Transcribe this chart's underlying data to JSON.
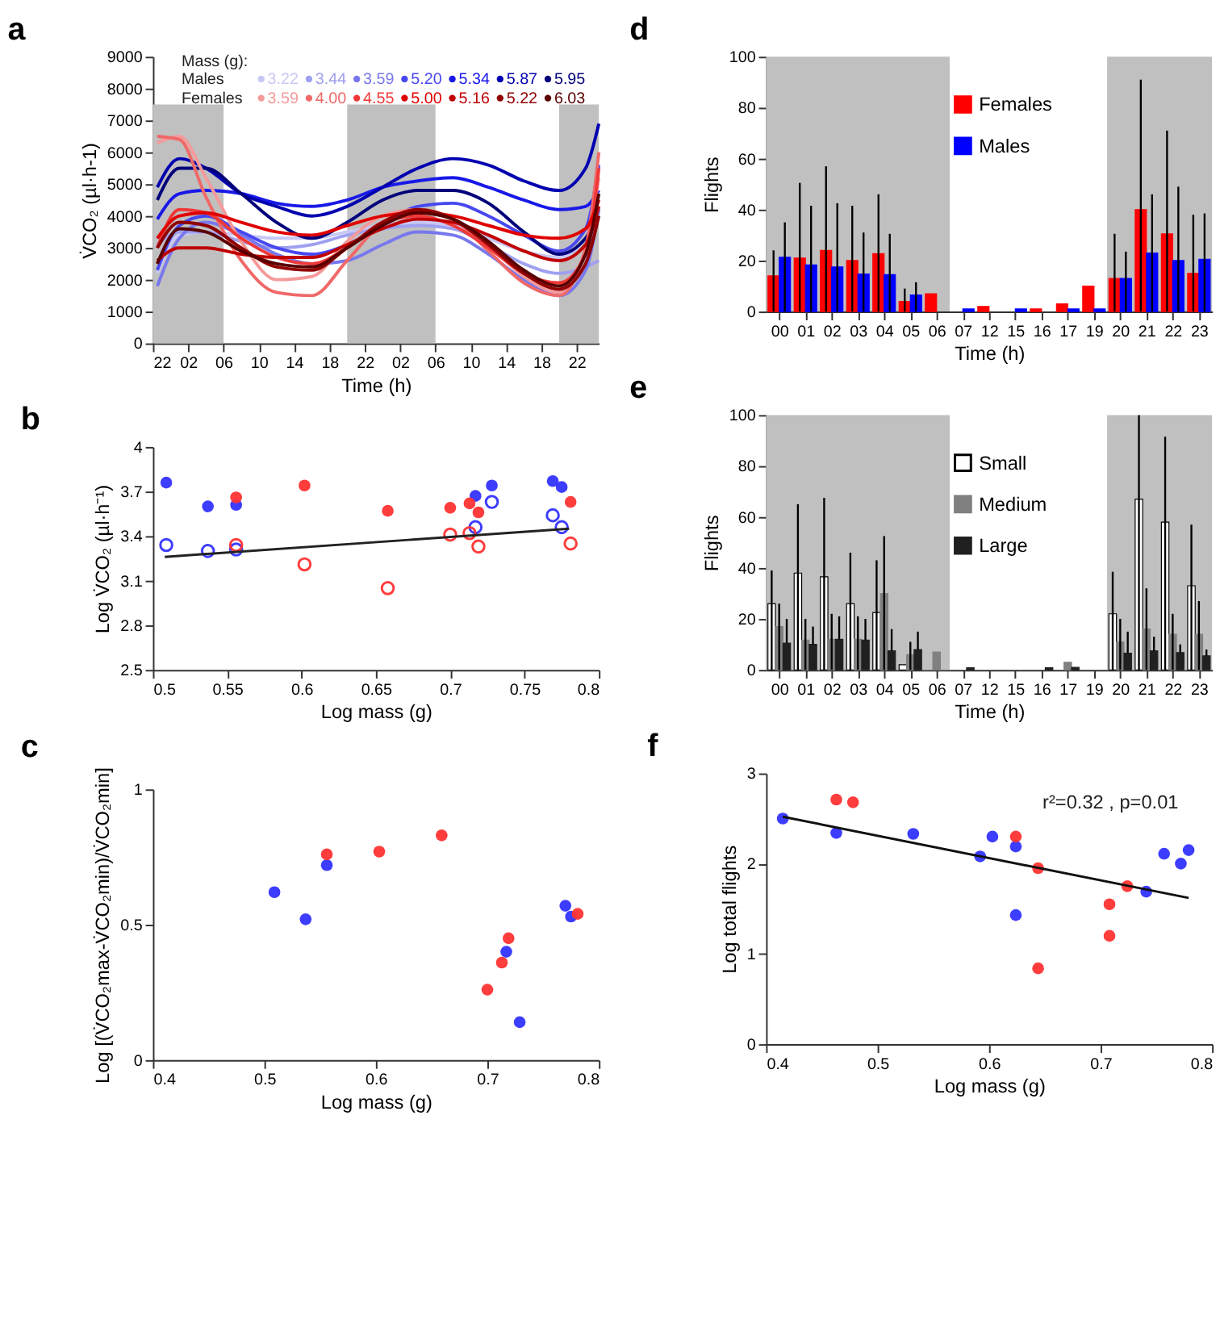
{
  "chart_data": [
    {
      "type": "line",
      "title": "a",
      "xlabel": "Time (h)",
      "ylabel": "V̇CO₂ (µl·h-1)",
      "legend_title": "Mass (g):",
      "legend": "top",
      "grid": false,
      "line_style": "solid",
      "marker": "none",
      "annotations": [
        "Males",
        "Females"
      ],
      "x": [
        "2000-01-01T22:30",
        "2000-01-02T01:00",
        "2000-01-02T04:00",
        "2000-01-02T08:00",
        "2000-01-02T12:00",
        "2000-01-02T16:00",
        "2000-01-02T20:00",
        "2000-01-03T00:00",
        "2000-01-03T04:00",
        "2000-01-03T08:00",
        "2000-01-03T12:00",
        "2000-01-03T16:00",
        "2000-01-03T20:00",
        "2000-01-03T23:00",
        "2000-01-04T00:30"
      ],
      "xlim": [
        "2000-01-01T22:00",
        "2000-01-04T00:30"
      ],
      "xticks": [
        {
          "value": "2000-01-01T22:00",
          "label": "22"
        },
        {
          "value": "2000-01-02T02:00",
          "label": "02"
        },
        {
          "value": "2000-01-02T06:00",
          "label": "06"
        },
        {
          "value": "2000-01-02T10:00",
          "label": "10"
        },
        {
          "value": "2000-01-02T14:00",
          "label": "14"
        },
        {
          "value": "2000-01-02T18:00",
          "label": "18"
        },
        {
          "value": "2000-01-02T22:00",
          "label": "22"
        },
        {
          "value": "2000-01-03T02:00",
          "label": "02"
        },
        {
          "value": "2000-01-03T06:00",
          "label": "06"
        },
        {
          "value": "2000-01-03T10:00",
          "label": "10"
        },
        {
          "value": "2000-01-03T14:00",
          "label": "14"
        },
        {
          "value": "2000-01-03T18:00",
          "label": "18"
        },
        {
          "value": "2000-01-03T22:00",
          "label": "22"
        }
      ],
      "ylim": [
        0,
        9000
      ],
      "yticks": [
        0,
        1000,
        2000,
        3000,
        4000,
        5000,
        6000,
        7000,
        8000,
        9000
      ],
      "bands": [
        {
          "axis": "x",
          "from": "2000-01-01T22:00",
          "to": "2000-01-02T06:00",
          "color": "#c0c0c0"
        },
        {
          "axis": "x",
          "from": "2000-01-02T20:00",
          "to": "2000-01-03T06:00",
          "color": "#c0c0c0"
        },
        {
          "axis": "x",
          "from": "2000-01-03T20:00",
          "to": "2000-01-04T00:30",
          "color": "#c0c0c0"
        }
      ],
      "series": [
        {
          "name": "3.22",
          "color": "#c8c8f5",
          "values": [
            2200,
            3400,
            3500,
            3400,
            3300,
            3300,
            3500,
            3700,
            3800,
            3700,
            3300,
            2900,
            2700,
            3300,
            4000
          ]
        },
        {
          "name": "3.44",
          "color": "#a0a0f0",
          "values": [
            3100,
            3500,
            3500,
            3200,
            3000,
            3100,
            3400,
            3600,
            3700,
            3600,
            3100,
            2500,
            2200,
            2400,
            2600
          ]
        },
        {
          "name": "3.59",
          "color": "#7878ee",
          "values": [
            1800,
            3300,
            3800,
            3400,
            2800,
            2500,
            2600,
            3100,
            3500,
            3400,
            2800,
            2000,
            1500,
            2300,
            4200
          ]
        },
        {
          "name": "5.20",
          "color": "#4848f0",
          "values": [
            2300,
            3700,
            4000,
            3500,
            3000,
            2800,
            3100,
            3700,
            4300,
            4400,
            4000,
            3400,
            2900,
            3600,
            5600
          ]
        },
        {
          "name": "5.34",
          "color": "#1818e8",
          "values": [
            3900,
            4700,
            4800,
            4700,
            4400,
            4300,
            4500,
            4900,
            5100,
            5200,
            4900,
            4500,
            4200,
            4300,
            4800
          ]
        },
        {
          "name": "5.87",
          "color": "#0000b0",
          "values": [
            4900,
            5800,
            5500,
            4700,
            4300,
            4000,
            4300,
            4900,
            5500,
            5800,
            5600,
            5100,
            4800,
            5500,
            6900
          ]
        },
        {
          "name": "5.95",
          "color": "#00007a",
          "values": [
            4500,
            5500,
            5500,
            4700,
            3800,
            3300,
            3800,
            4500,
            4800,
            4800,
            4400,
            3500,
            2800,
            3300,
            4300
          ]
        },
        {
          "name": "3.59",
          "color": "#f59a9a",
          "values": [
            6300,
            6500,
            5200,
            3200,
            2000,
            2100,
            3200,
            4000,
            4200,
            3900,
            3100,
            2100,
            1600,
            2900,
            5200
          ]
        },
        {
          "name": "4.00",
          "color": "#f06868",
          "values": [
            6500,
            6400,
            4600,
            2600,
            1600,
            1500,
            2600,
            3800,
            4200,
            3900,
            2900,
            1900,
            1500,
            3000,
            6000
          ]
        },
        {
          "name": "4.55",
          "color": "#f03838",
          "values": [
            3000,
            4200,
            4100,
            3300,
            2700,
            2500,
            3000,
            3800,
            4000,
            3700,
            3000,
            2200,
            1900,
            2800,
            5500
          ]
        },
        {
          "name": "5.00",
          "color": "#e00000",
          "values": [
            3300,
            4000,
            4100,
            3800,
            3500,
            3400,
            3700,
            4000,
            4100,
            4000,
            3700,
            3400,
            3300,
            3600,
            4500
          ]
        },
        {
          "name": "5.16",
          "color": "#c00000",
          "values": [
            2600,
            3000,
            3000,
            2800,
            2700,
            2700,
            3100,
            3600,
            3900,
            3800,
            3400,
            2900,
            2600,
            3100,
            4300
          ]
        },
        {
          "name": "5.22",
          "color": "#900000",
          "values": [
            3000,
            3800,
            3700,
            3000,
            2400,
            2300,
            3000,
            3800,
            4200,
            3900,
            3100,
            2200,
            1700,
            2500,
            4000
          ]
        },
        {
          "name": "6.03",
          "color": "#5a0000",
          "values": [
            2500,
            3600,
            3500,
            2900,
            2500,
            2400,
            3000,
            3700,
            4100,
            3900,
            3200,
            2300,
            1800,
            2800,
            4700
          ]
        }
      ]
    },
    {
      "type": "scatter",
      "title": "b",
      "xlabel": "Log mass (g)",
      "ylabel": "Log V̇CO₂ (µl·h⁻¹)",
      "grid": false,
      "xlim": [
        0.5,
        0.8
      ],
      "xticks": [
        0.5,
        0.55,
        0.6,
        0.65,
        0.7,
        0.75,
        0.8
      ],
      "ylim": [
        2.5,
        4
      ],
      "yticks": [
        2.5,
        2.8,
        3.1,
        3.4,
        3.7,
        4
      ],
      "series": [
        {
          "color": "#3333ff",
          "marker": "circle",
          "x": [
            0.509,
            0.537,
            0.556,
            0.717,
            0.728,
            0.769,
            0.775
          ],
          "values": [
            3.76,
            3.6,
            3.61,
            3.67,
            3.74,
            3.77,
            3.73
          ]
        },
        {
          "color": "#ff3333",
          "marker": "circle",
          "x": [
            0.556,
            0.602,
            0.658,
            0.7,
            0.713,
            0.719,
            0.781
          ],
          "values": [
            3.66,
            3.74,
            3.57,
            3.59,
            3.62,
            3.56,
            3.63
          ]
        },
        {
          "color": "#3333ff",
          "marker": "circle_open",
          "x": [
            0.509,
            0.537,
            0.556,
            0.717,
            0.728,
            0.769,
            0.775
          ],
          "values": [
            3.34,
            3.3,
            3.31,
            3.46,
            3.63,
            3.54,
            3.46
          ]
        },
        {
          "color": "#ff3333",
          "marker": "circle_open",
          "x": [
            0.556,
            0.602,
            0.658,
            0.7,
            0.713,
            0.719,
            0.781
          ],
          "values": [
            3.34,
            3.21,
            3.05,
            3.41,
            3.42,
            3.33,
            3.35
          ]
        },
        {
          "type": "line",
          "color": "#222222",
          "x": [
            0.508,
            0.78
          ],
          "values": [
            3.26,
            3.45
          ]
        }
      ]
    },
    {
      "type": "scatter",
      "title": "c",
      "xlabel": "Log mass (g)",
      "ylabel": "Log [(V̇CO₂max-V̇CO₂min)/V̇CO₂min]",
      "grid": false,
      "xlim": [
        0.4,
        0.8
      ],
      "xticks": [
        0.4,
        0.5,
        0.6,
        0.7,
        0.8
      ],
      "ylim": [
        0,
        1
      ],
      "yticks": [
        0,
        0.5,
        1
      ],
      "series": [
        {
          "color": "#3333ff",
          "marker": "circle",
          "x": [
            0.509,
            0.537,
            0.556,
            0.717,
            0.729,
            0.77,
            0.775
          ],
          "values": [
            0.62,
            0.52,
            0.72,
            0.4,
            0.14,
            0.57,
            0.53
          ]
        },
        {
          "color": "#ff3333",
          "marker": "circle",
          "x": [
            0.556,
            0.603,
            0.659,
            0.7,
            0.713,
            0.719,
            0.781
          ],
          "values": [
            0.76,
            0.77,
            0.83,
            0.26,
            0.36,
            0.45,
            0.54
          ]
        }
      ]
    },
    {
      "type": "bar",
      "title": "d",
      "xlabel": "Time (h)",
      "ylabel": "Flights",
      "grid": false,
      "legend": "top",
      "categories": [
        "00",
        "01",
        "02",
        "03",
        "04",
        "05",
        "06",
        "07",
        "12",
        "15",
        "16",
        "17",
        "19",
        "20",
        "21",
        "22",
        "23"
      ],
      "ylim": [
        0,
        100
      ],
      "yticks": [
        0,
        20,
        40,
        60,
        80,
        100
      ],
      "bands": [
        {
          "axis": "x",
          "from": "00",
          "to": "06",
          "color": "#c0c0c0"
        },
        {
          "axis": "x",
          "from": "20",
          "to": "23",
          "color": "#c0c0c0"
        }
      ],
      "series": [
        {
          "name": "Females",
          "color": "#ff0000",
          "values": [
            14,
            21,
            24,
            20,
            22.7,
            4,
            7,
            0,
            2,
            0,
            1,
            3,
            10,
            13,
            40,
            30.5,
            15
          ],
          "errors": [
            [
              0,
              24
            ],
            [
              0,
              50.5
            ],
            [
              0,
              57
            ],
            [
              0,
              41.5
            ],
            [
              0,
              46
            ],
            [
              0,
              9
            ],
            null,
            null,
            null,
            null,
            null,
            null,
            null,
            [
              0,
              30.5
            ],
            [
              0,
              91
            ],
            [
              0,
              71
            ],
            [
              0,
              38
            ]
          ]
        },
        {
          "name": "Males",
          "color": "#0000ff",
          "values": [
            21.3,
            18.3,
            17.5,
            14.7,
            14.5,
            6.5,
            0,
            1,
            0,
            1,
            0,
            1,
            1,
            13,
            23,
            20,
            20.5
          ],
          "errors": [
            [
              0,
              35
            ],
            [
              0,
              41.5
            ],
            [
              0,
              42.5
            ],
            [
              0,
              31
            ],
            [
              0,
              30.5
            ],
            [
              0,
              11.5
            ],
            null,
            null,
            null,
            null,
            null,
            null,
            null,
            [
              0,
              23.5
            ],
            [
              0,
              46
            ],
            [
              0,
              49
            ],
            [
              0,
              38.5
            ]
          ]
        }
      ]
    },
    {
      "type": "bar",
      "title": "e",
      "xlabel": "Time (h)",
      "ylabel": "Flights",
      "grid": false,
      "legend": "top",
      "categories": [
        "00",
        "01",
        "02",
        "03",
        "04",
        "05",
        "06",
        "07",
        "12",
        "15",
        "16",
        "17",
        "19",
        "20",
        "21",
        "22",
        "23"
      ],
      "ylim": [
        0,
        100
      ],
      "yticks": [
        0,
        20,
        40,
        60,
        80,
        100
      ],
      "bands": [
        {
          "axis": "x",
          "from": "00",
          "to": "06",
          "color": "#c0c0c0"
        },
        {
          "axis": "x",
          "from": "20",
          "to": "23",
          "color": "#c0c0c0"
        }
      ],
      "series": [
        {
          "name": "Small",
          "color": "#ffffff",
          "values": [
            26,
            38,
            36.5,
            26,
            22.5,
            2,
            0,
            0,
            0,
            0,
            0,
            0,
            0,
            22,
            67,
            58,
            33
          ],
          "errors": [
            [
              0,
              39
            ],
            [
              0,
              65
            ],
            [
              0,
              67.5
            ],
            [
              0,
              46
            ],
            [
              0,
              43
            ],
            null,
            null,
            null,
            null,
            null,
            null,
            null,
            null,
            [
              0,
              38.5
            ],
            [
              0,
              100
            ],
            [
              0,
              91.5
            ],
            [
              0,
              57
            ]
          ]
        },
        {
          "name": "Medium",
          "color": "#808080",
          "values": [
            17,
            11.7,
            12,
            12,
            30,
            6,
            7,
            0,
            0,
            0,
            0,
            3,
            0,
            11,
            16,
            14,
            14
          ],
          "errors": [
            [
              0,
              26
            ],
            [
              0,
              20
            ],
            [
              0,
              22
            ],
            [
              0,
              21
            ],
            [
              0,
              52.5
            ],
            [
              0,
              11
            ],
            null,
            null,
            null,
            null,
            null,
            null,
            null,
            [
              0,
              20
            ],
            [
              0,
              32
            ],
            [
              0,
              22
            ],
            [
              0,
              27
            ]
          ]
        },
        {
          "name": "Large",
          "color": "#202020",
          "values": [
            10.5,
            10,
            12,
            11.7,
            7.5,
            8,
            0,
            0.8,
            0,
            0,
            0.8,
            1,
            0,
            6.5,
            7.5,
            6.8,
            5.5
          ],
          "errors": [
            [
              10.5,
              20
            ],
            [
              10,
              17
            ],
            [
              12,
              21
            ],
            [
              11.7,
              20
            ],
            [
              7.5,
              16
            ],
            [
              8,
              15
            ],
            null,
            null,
            null,
            null,
            null,
            null,
            null,
            [
              6.5,
              15
            ],
            [
              7.5,
              13
            ],
            [
              6.8,
              10
            ],
            [
              5.5,
              8
            ]
          ]
        }
      ]
    },
    {
      "type": "scatter",
      "title": "f",
      "xlabel": "Log mass (g)",
      "ylabel": "Log total flights",
      "grid": false,
      "annotations": [
        "r²=0.32 , p=0.01"
      ],
      "xlim": [
        0.4,
        0.8
      ],
      "xticks": [
        0.4,
        0.5,
        0.6,
        0.7,
        0.8
      ],
      "ylim": [
        0,
        3
      ],
      "yticks": [
        0,
        1,
        2,
        3
      ],
      "series": [
        {
          "color": "#3333ff",
          "marker": "circle",
          "x": [
            0.415,
            0.463,
            0.532,
            0.592,
            0.603,
            0.624,
            0.624,
            0.741,
            0.757,
            0.772,
            0.779
          ],
          "values": [
            2.5,
            2.34,
            2.33,
            2.08,
            2.3,
            2.19,
            1.43,
            1.69,
            2.11,
            2.0,
            2.15
          ]
        },
        {
          "color": "#ff3333",
          "marker": "circle",
          "x": [
            0.463,
            0.478,
            0.624,
            0.644,
            0.644,
            0.708,
            0.708,
            0.724
          ],
          "values": [
            2.71,
            2.68,
            2.3,
            1.95,
            0.84,
            1.55,
            1.2,
            1.75
          ]
        },
        {
          "type": "line",
          "color": "#111111",
          "x": [
            0.415,
            0.779
          ],
          "values": [
            2.52,
            1.62
          ]
        }
      ]
    }
  ]
}
